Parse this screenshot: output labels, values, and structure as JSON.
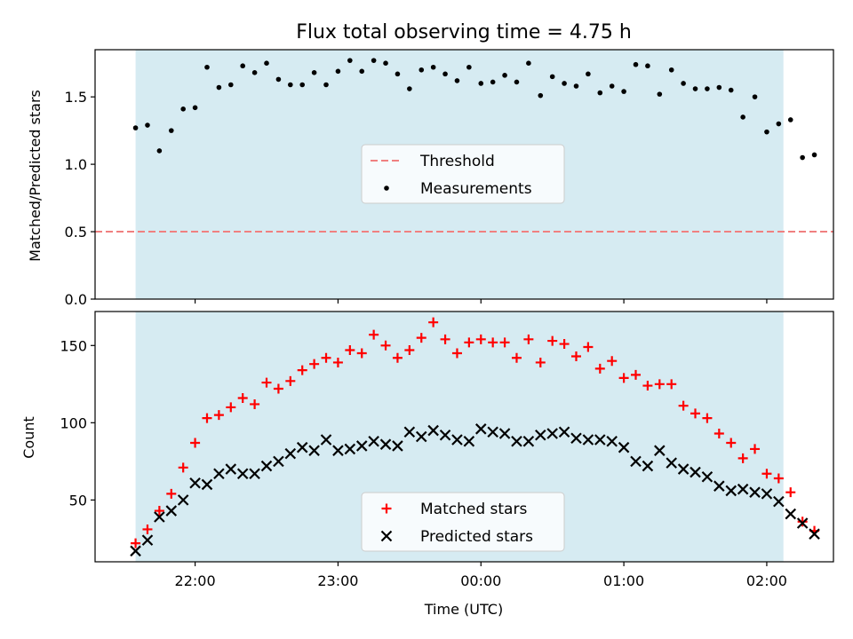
{
  "chart_data": [
    {
      "type": "scatter",
      "title": "Flux total observing time = 4.75 h",
      "xlabel": "",
      "ylabel": "Matched/Predicted stars",
      "ylim": [
        0,
        1.85
      ],
      "yticks": [
        "0.0",
        "0.5",
        "1.0",
        "1.5"
      ],
      "xlim": [
        "21:18",
        "02:28"
      ],
      "shaded_span": {
        "from": "21:35",
        "to": "02:07",
        "color": "#add8e6"
      },
      "threshold": {
        "name": "Threshold",
        "value": 0.5,
        "color": "#f08080",
        "style": "dashed"
      },
      "legend": [
        "Threshold",
        "Measurements"
      ],
      "legend_position": "center",
      "series": [
        {
          "name": "Measurements",
          "color": "#000000",
          "marker": "dot",
          "points": [
            [
              "21:35",
              1.27
            ],
            [
              "21:40",
              1.29
            ],
            [
              "21:45",
              1.1
            ],
            [
              "21:50",
              1.25
            ],
            [
              "21:55",
              1.41
            ],
            [
              "22:00",
              1.42
            ],
            [
              "22:05",
              1.72
            ],
            [
              "22:10",
              1.57
            ],
            [
              "22:15",
              1.59
            ],
            [
              "22:20",
              1.73
            ],
            [
              "22:25",
              1.68
            ],
            [
              "22:30",
              1.75
            ],
            [
              "22:35",
              1.63
            ],
            [
              "22:40",
              1.59
            ],
            [
              "22:45",
              1.59
            ],
            [
              "22:50",
              1.68
            ],
            [
              "22:55",
              1.59
            ],
            [
              "23:00",
              1.69
            ],
            [
              "23:05",
              1.77
            ],
            [
              "23:10",
              1.69
            ],
            [
              "23:15",
              1.77
            ],
            [
              "23:20",
              1.75
            ],
            [
              "23:25",
              1.67
            ],
            [
              "23:30",
              1.56
            ],
            [
              "23:35",
              1.7
            ],
            [
              "23:40",
              1.72
            ],
            [
              "23:45",
              1.67
            ],
            [
              "23:50",
              1.62
            ],
            [
              "23:55",
              1.72
            ],
            [
              "00:00",
              1.6
            ],
            [
              "00:05",
              1.61
            ],
            [
              "00:10",
              1.66
            ],
            [
              "00:15",
              1.61
            ],
            [
              "00:20",
              1.75
            ],
            [
              "00:25",
              1.51
            ],
            [
              "00:30",
              1.65
            ],
            [
              "00:35",
              1.6
            ],
            [
              "00:40",
              1.58
            ],
            [
              "00:45",
              1.67
            ],
            [
              "00:50",
              1.53
            ],
            [
              "00:55",
              1.58
            ],
            [
              "01:00",
              1.54
            ],
            [
              "01:05",
              1.74
            ],
            [
              "01:10",
              1.73
            ],
            [
              "01:15",
              1.52
            ],
            [
              "01:20",
              1.7
            ],
            [
              "01:25",
              1.6
            ],
            [
              "01:30",
              1.56
            ],
            [
              "01:35",
              1.56
            ],
            [
              "01:40",
              1.57
            ],
            [
              "01:45",
              1.55
            ],
            [
              "01:50",
              1.35
            ],
            [
              "01:55",
              1.5
            ],
            [
              "02:00",
              1.24
            ],
            [
              "02:05",
              1.3
            ],
            [
              "02:10",
              1.33
            ],
            [
              "02:15",
              1.05
            ],
            [
              "02:20",
              1.07
            ]
          ]
        }
      ]
    },
    {
      "type": "scatter",
      "title": "",
      "xlabel": "Time (UTC)",
      "ylabel": "Count",
      "ylim": [
        10,
        172
      ],
      "yticks": [
        "50",
        "100",
        "150"
      ],
      "xticks": [
        "22:00",
        "23:00",
        "00:00",
        "01:00",
        "02:00"
      ],
      "xlim": [
        "21:18",
        "02:28"
      ],
      "shaded_span": {
        "from": "21:35",
        "to": "02:07",
        "color": "#add8e6"
      },
      "legend": [
        "Matched stars",
        "Predicted stars"
      ],
      "legend_position": "lower center",
      "series": [
        {
          "name": "Matched stars",
          "color": "#ff0000",
          "marker": "plus",
          "points": [
            [
              "21:35",
              22
            ],
            [
              "21:40",
              31
            ],
            [
              "21:45",
              43
            ],
            [
              "21:50",
              54
            ],
            [
              "21:55",
              71
            ],
            [
              "22:00",
              87
            ],
            [
              "22:05",
              103
            ],
            [
              "22:10",
              105
            ],
            [
              "22:15",
              110
            ],
            [
              "22:20",
              116
            ],
            [
              "22:25",
              112
            ],
            [
              "22:30",
              126
            ],
            [
              "22:35",
              122
            ],
            [
              "22:40",
              127
            ],
            [
              "22:45",
              134
            ],
            [
              "22:50",
              138
            ],
            [
              "22:55",
              142
            ],
            [
              "23:00",
              139
            ],
            [
              "23:05",
              147
            ],
            [
              "23:10",
              145
            ],
            [
              "23:15",
              157
            ],
            [
              "23:20",
              150
            ],
            [
              "23:25",
              142
            ],
            [
              "23:30",
              147
            ],
            [
              "23:35",
              155
            ],
            [
              "23:40",
              165
            ],
            [
              "23:45",
              154
            ],
            [
              "23:50",
              145
            ],
            [
              "23:55",
              152
            ],
            [
              "00:00",
              154
            ],
            [
              "00:05",
              152
            ],
            [
              "00:10",
              152
            ],
            [
              "00:15",
              142
            ],
            [
              "00:20",
              154
            ],
            [
              "00:25",
              139
            ],
            [
              "00:30",
              153
            ],
            [
              "00:35",
              151
            ],
            [
              "00:40",
              143
            ],
            [
              "00:45",
              149
            ],
            [
              "00:50",
              135
            ],
            [
              "00:55",
              140
            ],
            [
              "01:00",
              129
            ],
            [
              "01:05",
              131
            ],
            [
              "01:10",
              124
            ],
            [
              "01:15",
              125
            ],
            [
              "01:20",
              125
            ],
            [
              "01:25",
              111
            ],
            [
              "01:30",
              106
            ],
            [
              "01:35",
              103
            ],
            [
              "01:40",
              93
            ],
            [
              "01:45",
              87
            ],
            [
              "01:50",
              77
            ],
            [
              "01:55",
              83
            ],
            [
              "02:00",
              67
            ],
            [
              "02:05",
              64
            ],
            [
              "02:10",
              55
            ],
            [
              "02:15",
              36
            ],
            [
              "02:20",
              30
            ]
          ]
        },
        {
          "name": "Predicted stars",
          "color": "#000000",
          "marker": "cross",
          "points": [
            [
              "21:35",
              17
            ],
            [
              "21:40",
              24
            ],
            [
              "21:45",
              39
            ],
            [
              "21:50",
              43
            ],
            [
              "21:55",
              50
            ],
            [
              "22:00",
              61
            ],
            [
              "22:05",
              60
            ],
            [
              "22:10",
              67
            ],
            [
              "22:15",
              70
            ],
            [
              "22:20",
              67
            ],
            [
              "22:25",
              67
            ],
            [
              "22:30",
              72
            ],
            [
              "22:35",
              75
            ],
            [
              "22:40",
              80
            ],
            [
              "22:45",
              84
            ],
            [
              "22:50",
              82
            ],
            [
              "22:55",
              89
            ],
            [
              "23:00",
              82
            ],
            [
              "23:05",
              83
            ],
            [
              "23:10",
              85
            ],
            [
              "23:15",
              88
            ],
            [
              "23:20",
              86
            ],
            [
              "23:25",
              85
            ],
            [
              "23:30",
              94
            ],
            [
              "23:35",
              91
            ],
            [
              "23:40",
              95
            ],
            [
              "23:45",
              92
            ],
            [
              "23:50",
              89
            ],
            [
              "23:55",
              88
            ],
            [
              "00:00",
              96
            ],
            [
              "00:05",
              94
            ],
            [
              "00:10",
              93
            ],
            [
              "00:15",
              88
            ],
            [
              "00:20",
              88
            ],
            [
              "00:25",
              92
            ],
            [
              "00:30",
              93
            ],
            [
              "00:35",
              94
            ],
            [
              "00:40",
              90
            ],
            [
              "00:45",
              89
            ],
            [
              "00:50",
              89
            ],
            [
              "00:55",
              88
            ],
            [
              "01:00",
              84
            ],
            [
              "01:05",
              75
            ],
            [
              "01:10",
              72
            ],
            [
              "01:15",
              82
            ],
            [
              "01:20",
              74
            ],
            [
              "01:25",
              70
            ],
            [
              "01:30",
              68
            ],
            [
              "01:35",
              65
            ],
            [
              "01:40",
              59
            ],
            [
              "01:45",
              56
            ],
            [
              "01:50",
              57
            ],
            [
              "01:55",
              55
            ],
            [
              "02:00",
              54
            ],
            [
              "02:05",
              49
            ],
            [
              "02:10",
              41
            ],
            [
              "02:15",
              35
            ],
            [
              "02:20",
              28
            ]
          ]
        }
      ]
    }
  ]
}
